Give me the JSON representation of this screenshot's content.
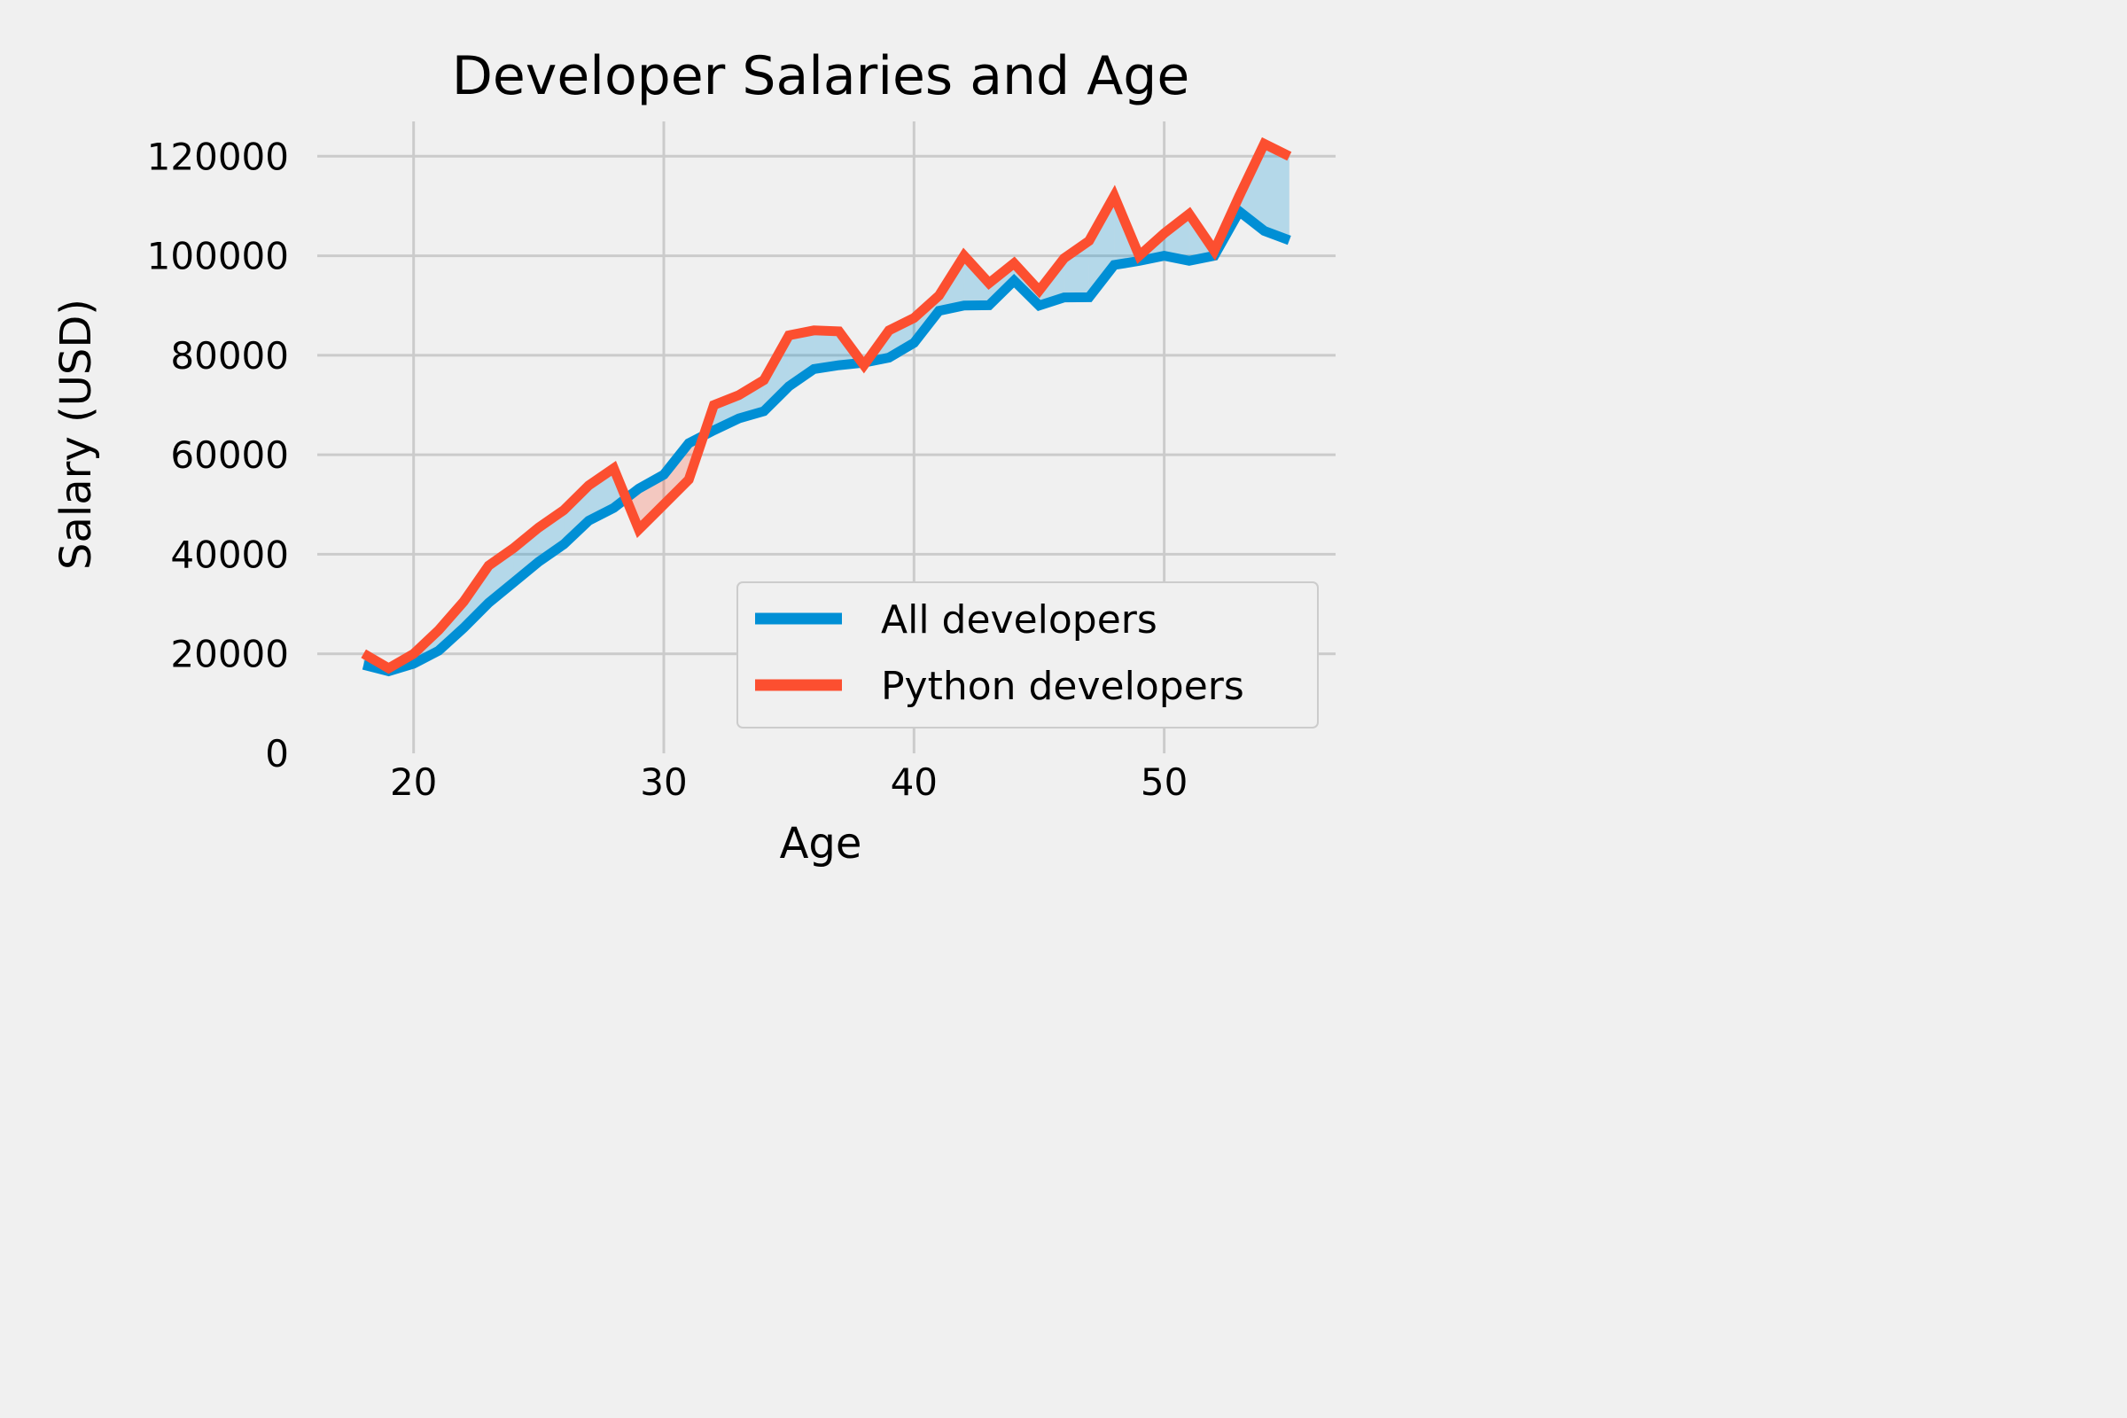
{
  "chart_data": {
    "type": "line",
    "title": "Developer Salaries and Age",
    "xlabel": "Age",
    "ylabel": "Salary (USD)",
    "xlim": [
      16.15,
      56.85
    ],
    "ylim": [
      0,
      127000
    ],
    "xticks": [
      20,
      30,
      40,
      50
    ],
    "yticks": [
      0,
      20000,
      40000,
      60000,
      80000,
      100000,
      120000
    ],
    "grid": true,
    "legend_position": "lower right",
    "x": [
      18,
      19,
      20,
      21,
      22,
      23,
      24,
      25,
      26,
      27,
      28,
      29,
      30,
      31,
      32,
      33,
      34,
      35,
      36,
      37,
      38,
      39,
      40,
      41,
      42,
      43,
      44,
      45,
      46,
      47,
      48,
      49,
      50,
      51,
      52,
      53,
      54,
      55
    ],
    "series": [
      {
        "name": "All developers",
        "color": "#008fd5",
        "values": [
          17784,
          16500,
          18012,
          20628,
          25206,
          30252,
          34368,
          38496,
          42000,
          46752,
          49320,
          53200,
          56000,
          62316,
          64928,
          67317,
          68748,
          73752,
          77232,
          78000,
          78508,
          79536,
          82488,
          88935,
          90000,
          90056,
          95000,
          90000,
          91633,
          91660,
          98150,
          98964,
          100000,
          98988,
          100000,
          108923,
          105000,
          103117
        ]
      },
      {
        "name": "Python developers",
        "color": "#fc4f30",
        "values": [
          20046,
          17100,
          20000,
          24744,
          30500,
          37732,
          41247,
          45372,
          48876,
          53850,
          57287,
          45000,
          50000,
          55000,
          70000,
          72000,
          75000,
          84000,
          85000,
          84800,
          78000,
          85000,
          87500,
          92000,
          100000,
          94500,
          98500,
          93000,
          99500,
          103000,
          112000,
          100000,
          104500,
          108400,
          101000,
          112000,
          122500,
          120000
        ]
      }
    ],
    "fill_colors": {
      "above": "#008fd5",
      "below": "#fc4f30"
    }
  }
}
